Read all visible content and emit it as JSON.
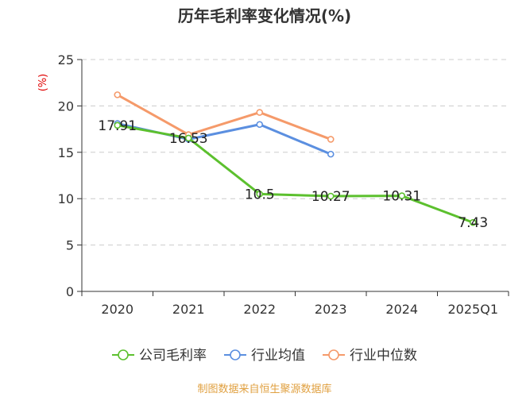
{
  "chart_data": {
    "type": "line",
    "title": "历年毛利率变化情况(%)",
    "unit_label": "(%)",
    "categories": [
      "2020",
      "2021",
      "2022",
      "2023",
      "2024",
      "2025Q1"
    ],
    "y_ticks": [
      "0",
      "5",
      "10",
      "15",
      "20",
      "25"
    ],
    "ylim": [
      0,
      25
    ],
    "grid": true,
    "legend_position": "bottom",
    "series": [
      {
        "name": "公司毛利率",
        "color": "#5cc02e",
        "values": [
          17.91,
          16.53,
          10.5,
          10.27,
          10.31,
          7.43
        ],
        "labels": [
          "17.91",
          "16.53",
          "10.5",
          "10.27",
          "10.31",
          "7.43"
        ]
      },
      {
        "name": "行业均值",
        "color": "#5b8fe0",
        "values": [
          18.1,
          16.4,
          18.0,
          14.8,
          null,
          null
        ]
      },
      {
        "name": "行业中位数",
        "color": "#f59a6a",
        "values": [
          21.2,
          16.9,
          19.3,
          16.4,
          null,
          null
        ]
      }
    ],
    "source": "制图数据来自恒生聚源数据库"
  }
}
